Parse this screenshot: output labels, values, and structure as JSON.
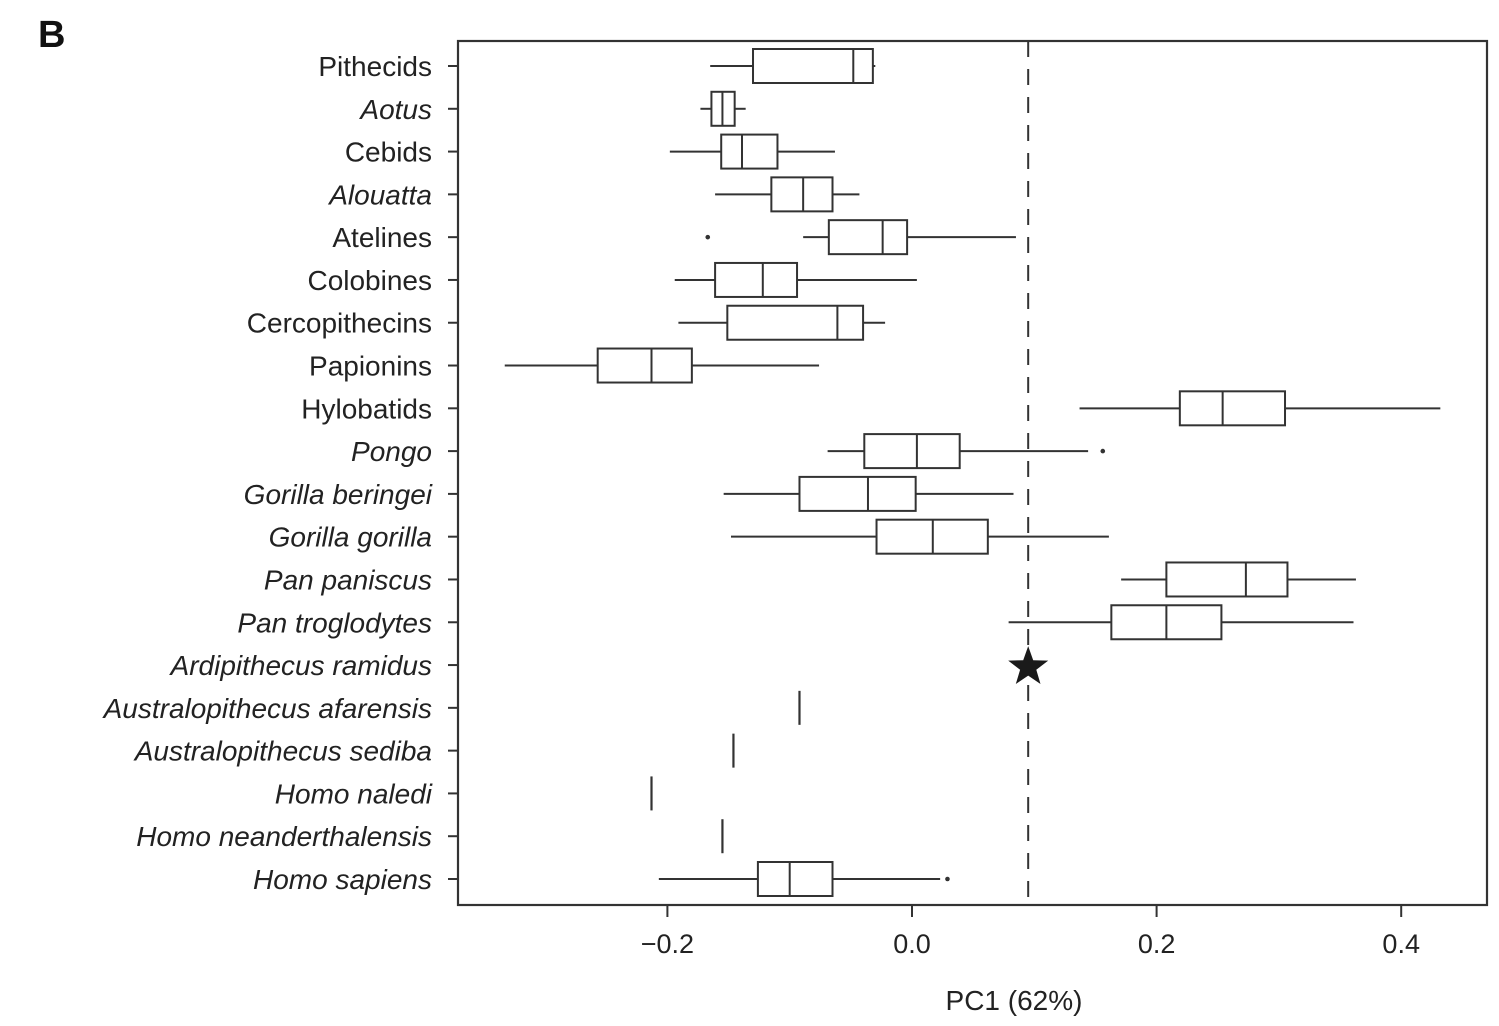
{
  "panel_label": "B",
  "chart_data": {
    "type": "boxplot",
    "orientation": "horizontal",
    "xlabel": "PC1 (62%)",
    "ylabel": "",
    "xlim": [
      -0.37,
      0.47
    ],
    "xticks": [
      -0.2,
      0.0,
      0.2,
      0.4
    ],
    "xtick_labels": [
      "−0.2",
      "0.0",
      "0.2",
      "0.4"
    ],
    "reference_line": {
      "value": 0.095,
      "style": "dashed"
    },
    "grid": false,
    "colors": {
      "line": "#333333",
      "star": "#1a1a1a",
      "box_fill": "#ffffff"
    },
    "groups": [
      {
        "label": "Pithecids",
        "italic": false,
        "kind": "box",
        "min": -0.165,
        "q1": -0.13,
        "median": -0.048,
        "q3": -0.032,
        "max": -0.03,
        "outliers": []
      },
      {
        "label": "Aotus",
        "italic": true,
        "kind": "box",
        "min": -0.173,
        "q1": -0.164,
        "median": -0.155,
        "q3": -0.145,
        "max": -0.136,
        "outliers": []
      },
      {
        "label": "Cebids",
        "italic": false,
        "kind": "box",
        "min": -0.198,
        "q1": -0.156,
        "median": -0.139,
        "q3": -0.11,
        "max": -0.063,
        "outliers": []
      },
      {
        "label": "Alouatta",
        "italic": true,
        "kind": "box",
        "min": -0.161,
        "q1": -0.115,
        "median": -0.089,
        "q3": -0.065,
        "max": -0.043,
        "outliers": []
      },
      {
        "label": "Atelines",
        "italic": false,
        "kind": "box",
        "min": -0.089,
        "q1": -0.068,
        "median": -0.024,
        "q3": -0.004,
        "max": 0.085,
        "outliers": [
          -0.167
        ]
      },
      {
        "label": "Colobines",
        "italic": false,
        "kind": "box",
        "min": -0.194,
        "q1": -0.161,
        "median": -0.122,
        "q3": -0.094,
        "max": 0.004,
        "outliers": []
      },
      {
        "label": "Cercopithecins",
        "italic": false,
        "kind": "box",
        "min": -0.191,
        "q1": -0.151,
        "median": -0.061,
        "q3": -0.04,
        "max": -0.022,
        "outliers": []
      },
      {
        "label": "Papionins",
        "italic": false,
        "kind": "box",
        "min": -0.333,
        "q1": -0.257,
        "median": -0.213,
        "q3": -0.18,
        "max": -0.076,
        "outliers": []
      },
      {
        "label": "Hylobatids",
        "italic": false,
        "kind": "box",
        "min": 0.137,
        "q1": 0.219,
        "median": 0.254,
        "q3": 0.305,
        "max": 0.432,
        "outliers": []
      },
      {
        "label": "Pongo",
        "italic": true,
        "kind": "box",
        "min": -0.069,
        "q1": -0.039,
        "median": 0.004,
        "q3": 0.039,
        "max": 0.144,
        "outliers": [
          0.156
        ]
      },
      {
        "label": "Gorilla beringei",
        "italic": true,
        "kind": "box",
        "min": -0.154,
        "q1": -0.092,
        "median": -0.036,
        "q3": 0.003,
        "max": 0.083,
        "outliers": []
      },
      {
        "label": "Gorilla gorilla",
        "italic": true,
        "kind": "box",
        "min": -0.148,
        "q1": -0.029,
        "median": 0.017,
        "q3": 0.062,
        "max": 0.161,
        "outliers": []
      },
      {
        "label": "Pan paniscus",
        "italic": true,
        "kind": "box",
        "min": 0.171,
        "q1": 0.208,
        "median": 0.273,
        "q3": 0.307,
        "max": 0.363,
        "outliers": []
      },
      {
        "label": "Pan troglodytes",
        "italic": true,
        "kind": "box",
        "min": 0.079,
        "q1": 0.163,
        "median": 0.208,
        "q3": 0.253,
        "max": 0.361,
        "outliers": []
      },
      {
        "label": "Ardipithecus ramidus",
        "italic": true,
        "kind": "star",
        "value": 0.095
      },
      {
        "label": "Australopithecus afarensis",
        "italic": true,
        "kind": "single",
        "value": -0.092
      },
      {
        "label": "Australopithecus sediba",
        "italic": true,
        "kind": "single",
        "value": -0.146
      },
      {
        "label": "Homo naledi",
        "italic": true,
        "kind": "single",
        "value": -0.213
      },
      {
        "label": "Homo neanderthalensis",
        "italic": true,
        "kind": "single",
        "value": -0.155
      },
      {
        "label": "Homo sapiens",
        "italic": true,
        "kind": "box",
        "min": -0.207,
        "q1": -0.126,
        "median": -0.1,
        "q3": -0.065,
        "max": 0.023,
        "outliers": [
          0.029
        ]
      }
    ]
  }
}
